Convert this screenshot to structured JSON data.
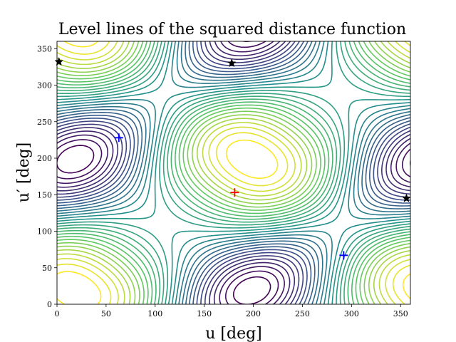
{
  "chart_data": {
    "type": "contour",
    "title": "Level lines of the squared distance function",
    "xlabel": "u [deg]",
    "ylabel": "u′ [deg]",
    "xlim": [
      0,
      360
    ],
    "ylim": [
      0,
      360
    ],
    "xticks": [
      0,
      50,
      100,
      150,
      200,
      250,
      300,
      350
    ],
    "yticks": [
      0,
      50,
      100,
      150,
      200,
      250,
      300,
      350
    ],
    "colormap": [
      "#440154",
      "#3b528b",
      "#21918c",
      "#5ec962",
      "#fde725"
    ],
    "levels": 30,
    "grid": false,
    "markers": [
      {
        "name": "maximum",
        "symbol": "plus",
        "color": "#ff0000",
        "x": 181,
        "y": 153
      },
      {
        "name": "minimum",
        "symbol": "plus",
        "color": "#0000ff",
        "x": 63,
        "y": 228
      },
      {
        "name": "minimum",
        "symbol": "plus",
        "color": "#0000ff",
        "x": 292,
        "y": 67
      },
      {
        "name": "saddle",
        "symbol": "star",
        "color": "#000000",
        "x": 178,
        "y": 330
      },
      {
        "name": "saddle",
        "symbol": "star",
        "color": "#000000",
        "x": 356,
        "y": 145
      },
      {
        "name": "saddle",
        "symbol": "star",
        "color": "#000000",
        "x": 2,
        "y": 332
      }
    ]
  }
}
